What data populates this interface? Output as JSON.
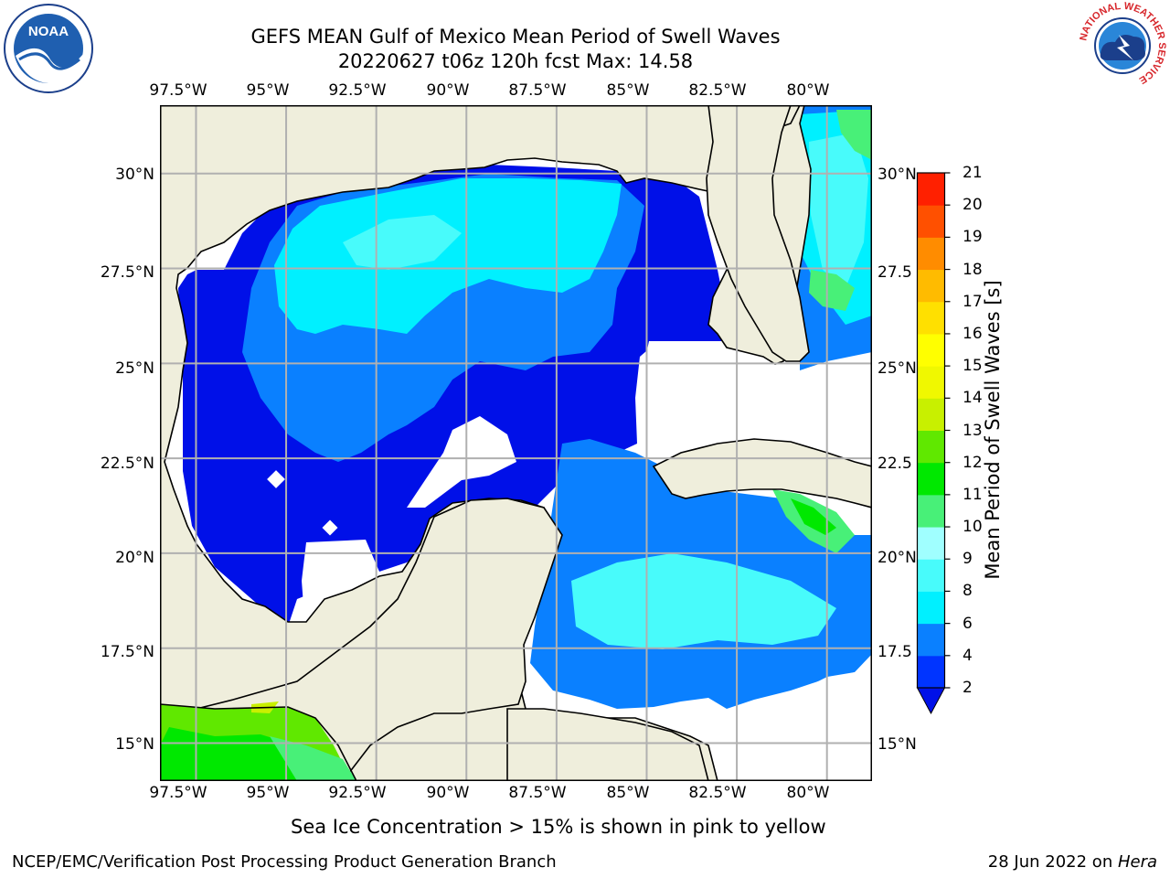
{
  "header": {
    "title_line1": "GEFS MEAN Gulf of Mexico Mean Period of Swell Waves",
    "title_line2": "20220627 t06z 120h fcst   Max: 14.58"
  },
  "logos": {
    "left": {
      "icon": "noaa-logo-icon",
      "text": "NOAA"
    },
    "right": {
      "icon": "nws-logo-icon",
      "text": "NATIONAL WEATHER SERVICE"
    }
  },
  "map": {
    "lon_range": [
      -98.5,
      -78.75
    ],
    "lat_range": [
      14.0,
      31.8
    ],
    "top_lon_labels": [
      "97.5°W",
      "95°W",
      "92.5°W",
      "90°W",
      "87.5°W",
      "85°W",
      "82.5°W",
      "80°W"
    ],
    "bottom_lon_labels": [
      "97.5°W",
      "95°W",
      "92.5°W",
      "90°W",
      "87.5°W",
      "85°W",
      "82.5°W",
      "80°W"
    ],
    "lon_values": [
      -97.5,
      -95,
      -92.5,
      -90,
      -87.5,
      -85,
      -82.5,
      -80
    ],
    "left_lat_labels": [
      "30°N",
      "27.5°N",
      "25°N",
      "22.5°N",
      "20°N",
      "17.5°N",
      "15°N"
    ],
    "right_lat_labels": [
      "30°N",
      "27.5",
      "25°N",
      "22.5",
      "20°N",
      "17.5",
      "15°N"
    ],
    "lat_values": [
      30,
      27.5,
      25,
      22.5,
      20,
      17.5,
      15
    ],
    "colors": {
      "land": "#efeedc",
      "no_data": "#ffffff",
      "grid": "#b0b0b0",
      "coast": "#000000"
    }
  },
  "colorbar": {
    "label": "Mean Period of Swell Waves [s]",
    "ticks": [
      "21",
      "20",
      "19",
      "18",
      "17",
      "16",
      "15",
      "14",
      "13",
      "12",
      "11",
      "10",
      "9",
      "8",
      "6",
      "4",
      "2"
    ],
    "levels": [
      2,
      4,
      6,
      8,
      9,
      10,
      11,
      12,
      13,
      14,
      15,
      16,
      17,
      18,
      19,
      20,
      21
    ],
    "colors": [
      "#0034ff",
      "#0a80ff",
      "#00f0ff",
      "#48fbfb",
      "#a0ffff",
      "#48f078",
      "#00e800",
      "#60e800",
      "#c8f000",
      "#f0f800",
      "#ffff00",
      "#ffe000",
      "#ffbb00",
      "#ff8c00",
      "#ff5000",
      "#ff2000"
    ],
    "under_color": "#0010e8"
  },
  "chart_data": {
    "type": "heatmap",
    "title": "GEFS MEAN Gulf of Mexico Mean Period of Swell Waves",
    "subtitle": "20220627 t06z 120h fcst   Max: 14.58",
    "colorbar_label": "Mean Period of Swell Waves [s]",
    "max_value": 14.58,
    "units": "s"
  },
  "footer": {
    "note": "Sea Ice Concentration > 15% is shown in pink to yellow",
    "credit": "NCEP/EMC/Verification Post Processing Product Generation Branch",
    "date": "28 Jun 2022 on ",
    "machine": "Hera"
  }
}
